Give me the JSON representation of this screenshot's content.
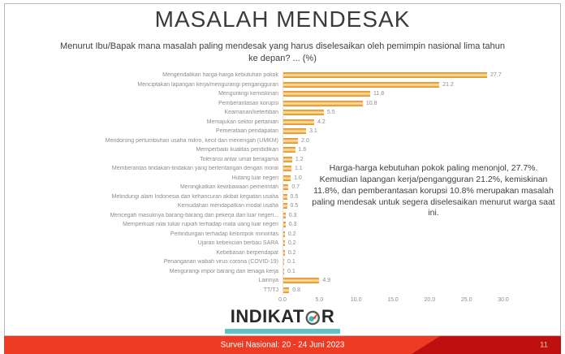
{
  "slide": {
    "title": "MASALAH MENDESAK",
    "subtitle": "Menurut Ibu/Bapak mana masalah paling mendesak yang harus diselesaikan oleh pemimpin nasional lima tahun ke depan? ... (%)",
    "annotation": "Harga-harga kebutuhan pokok paling menonjol, 27.7%. Kemudian lapangan kerja/pengangguran 21.2%, kemiskinan 11.8%, dan pemberantasan korupsi 10.8% merupakan masalah paling mendesak untuk segera diselesaikan menurut warga saat ini.",
    "footer_text": "Survei Nasional: 20 - 24 Juni 2023",
    "page_number": "11",
    "logo": {
      "text_left": "INDIKAT",
      "text_right": "R",
      "compass_icon": "compass-icon"
    }
  },
  "chart_data": {
    "type": "bar",
    "orientation": "horizontal",
    "title": "MASALAH MENDESAK",
    "xlabel": "",
    "ylabel": "",
    "xlim": [
      0,
      30
    ],
    "x_ticks": [
      "0.0",
      "5.0",
      "10.0",
      "15.0",
      "20.0",
      "25.0",
      "30.0"
    ],
    "grid": false,
    "legend": false,
    "categories": [
      "Mengendalikan harga-harga kebutuhan pokok",
      "Menciptakan lapangan kerja/mengurangi pengangguran",
      "Mengurangi kemiskinan",
      "Pemberantasan korupsi",
      "Keamanan/ketertiban",
      "Memajukan sektor pertanian",
      "Pemerataan pendapatan",
      "Mendorong pertumbuhan usaha mikro, kecil dan menengah (UMKM)",
      "Memperbaiki kualitas pendidikan",
      "Toleransi antar umat beragama",
      "Memberantas tindakan-tindakan yang bertentangan dengan moral",
      "Hutang luar negeri",
      "Meningkatkan kewibawaan pemerintah",
      "Melindungi alam Indonesia dari kehancuran akibat kegiatan usaha",
      "Kemudahan mendapatkan modal usaha",
      "Mencegah masuknya barang-barang dan pekerja dari luar negeri...",
      "Memperkuat nilai tukar rupiah terhadap mata uang luar negeri",
      "Perlindungan terhadap kelompok minoritas",
      "Ujaran kebencian berbau SARA",
      "Kebebasan berpendapat",
      "Penanganan wabah virus corona (COVID-19)",
      "Mengurangi impor barang dan tenaga kerja",
      "Lainnya",
      "TT/TJ"
    ],
    "values": [
      27.7,
      21.2,
      11.8,
      10.8,
      5.5,
      4.2,
      3.1,
      2.0,
      1.6,
      1.2,
      1.1,
      1.0,
      0.7,
      0.5,
      0.5,
      0.3,
      0.3,
      0.2,
      0.2,
      0.2,
      0.1,
      0.1,
      4.9,
      0.8
    ]
  },
  "colors": {
    "bar_orange": "#E8952B",
    "footer_red": "#EE3B24",
    "footer_dark_red": "#BF1010",
    "teal_accent": "#5EC4C1",
    "logo_needle_red": "#E8432A",
    "logo_dot_teal": "#3DBDB8",
    "label_gray": "#8C8C8C",
    "text_dark": "#3F3F3F"
  }
}
